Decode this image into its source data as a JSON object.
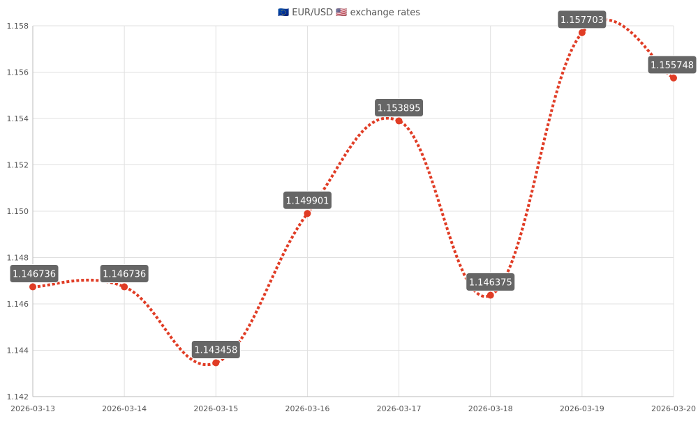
{
  "chart_data": {
    "type": "line",
    "title": "🇪🇺 EUR/USD 🇺🇸 exchange rates",
    "categories": [
      "2026-03-13",
      "2026-03-14",
      "2026-03-15",
      "2026-03-16",
      "2026-03-17",
      "2026-03-18",
      "2026-03-19",
      "2026-03-20"
    ],
    "values": [
      1.146736,
      1.146736,
      1.143458,
      1.149901,
      1.153895,
      1.146375,
      1.157703,
      1.155748
    ],
    "data_labels": [
      "1.146736",
      "1.146736",
      "1.143458",
      "1.149901",
      "1.153895",
      "1.146375",
      "1.157703",
      "1.155748"
    ],
    "ylim": [
      1.142,
      1.158
    ],
    "yticks": [
      "1.142",
      "1.144",
      "1.146",
      "1.148",
      "1.150",
      "1.152",
      "1.154",
      "1.156",
      "1.158"
    ],
    "grid": true,
    "line_style": "dotted, smooth",
    "colors": {
      "line": "#e03c25",
      "label_bg": "#666666",
      "label_text": "#ffffff",
      "grid": "#e0e0e0"
    }
  }
}
